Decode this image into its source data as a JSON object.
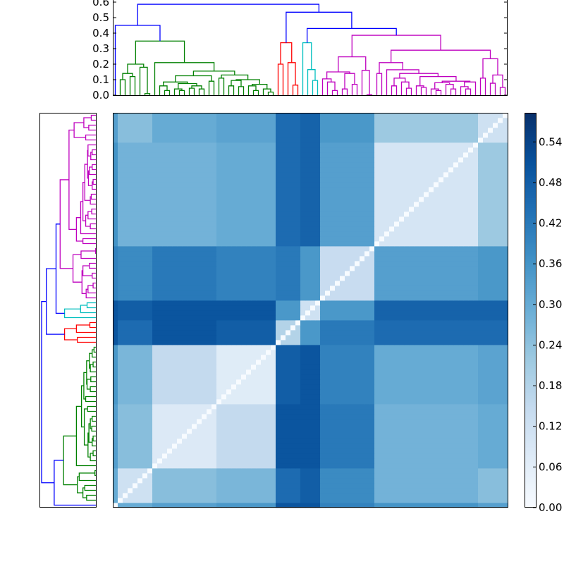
{
  "chart_data": {
    "type": "heatmap",
    "title": "",
    "colormap": "Blues",
    "colormap_stops": [
      "#f7fbff",
      "#deebf7",
      "#c6dbef",
      "#9ecae1",
      "#6baed6",
      "#4292c6",
      "#2171b5",
      "#08519c",
      "#08306b"
    ],
    "color_range": [
      0,
      0.583
    ],
    "colorbar_ticks": [
      "0.00",
      "0.06",
      "0.12",
      "0.18",
      "0.24",
      "0.30",
      "0.36",
      "0.42",
      "0.48",
      "0.54"
    ],
    "dendrogram_ylim": [
      0,
      0.6
    ],
    "dendrogram_ticks": [
      "0.0",
      "0.1",
      "0.2",
      "0.3",
      "0.4",
      "0.5",
      "0.6"
    ],
    "above_threshold_color": "#0000ff",
    "dendrogram": [
      0.586,
      [
        0.45,
        0,
        {
          "color": "#008000",
          "tree": [
            0.349,
            [
              0.2,
              [
                0.14,
                [
                  0.1,
                  0,
                  0
                ],
                [
                  0.12,
                  0,
                  0
                ]
              ],
              [
                0.18,
                0,
                [
                  0.01,
                  0,
                  0
                ]
              ]
            ],
            [
              0.21,
              0,
              [
                0.155,
                [
                  0.125,
                  [
                    0.085,
                    [
                      0.06,
                      0,
                      [
                        0.03,
                        0,
                        0
                      ]
                    ],
                    [
                      0.075,
                      [
                        0.04,
                        0,
                        [
                          0.03,
                          0,
                          0
                        ]
                      ],
                      [
                        0.06,
                        [
                          0.045,
                          0,
                          0
                        ],
                        [
                          0.04,
                          0,
                          0
                        ]
                      ]
                    ]
                  ],
                  [
                    0.09,
                    0,
                    0
                  ]
                ],
                [
                  0.13,
                  [
                    0.11,
                    0,
                    0
                  ],
                  [
                    0.1,
                    [
                      0.095,
                      [
                        0.06,
                        0,
                        0
                      ],
                      [
                        0.055,
                        0,
                        0
                      ]
                    ],
                    [
                      0.07,
                      [
                        0.06,
                        0,
                        [
                          0.03,
                          0,
                          0
                        ]
                      ],
                      [
                        0.04,
                        0,
                        [
                          0.02,
                          0,
                          0
                        ]
                      ]
                    ]
                  ]
                ]
              ]
            ]
          ]
        }
      ],
      [
        0.535,
        {
          "color": "#ff0000",
          "tree": [
            0.338,
            [
              0.2,
              0,
              0
            ],
            [
              0.21,
              0,
              [
                0.065,
                0,
                0
              ]
            ]
          ]
        },
        [
          0.43,
          {
            "color": "#00bfbf",
            "tree": [
              0.338,
              0,
              [
                0.165,
                0,
                [
                  0.095,
                  0,
                  0
                ]
              ]
            ]
          },
          {
            "color": "#bf00bf",
            "tree": [
              0.386,
              [
                0.247,
                [
                  0.15,
                  [
                    0.105,
                    0,
                    [
                      0.085,
                      0,
                      [
                        0.03,
                        0,
                        0
                      ]
                    ]
                  ],
                  [
                    0.14,
                    [
                      0.04,
                      0,
                      0
                    ],
                    [
                      0.07,
                      0,
                      0
                    ]
                  ]
                ],
                [
                  0.16,
                  0,
                  [
                    0.003,
                    0,
                    0
                  ]
                ]
              ],
              [
                0.29,
                [
                  0.21,
                  [
                    0.14,
                    0,
                    0
                  ],
                  [
                    0.164,
                    0,
                    [
                      0.14,
                      [
                        0.11,
                        [
                          0.06,
                          0,
                          0
                        ],
                        [
                          0.085,
                          0,
                          [
                            0.045,
                            0,
                            0
                          ]
                        ]
                      ],
                      [
                        0.12,
                        [
                          0.06,
                          0,
                          [
                            0.05,
                            0,
                            0
                          ]
                        ],
                        [
                          0.09,
                          [
                            0.08,
                            [
                              0.04,
                              0,
                              [
                                0.03,
                                0,
                                0
                              ]
                            ],
                            [
                              0.07,
                              0,
                              [
                                0.04,
                                0,
                                0
                              ]
                            ]
                          ],
                          [
                            0.085,
                            [
                              0.055,
                              0,
                              [
                                0.04,
                                0,
                                0
                              ]
                            ],
                            0
                          ]
                        ]
                      ]
                    ]
                  ]
                ],
                [
                  0.235,
                  [
                    0.11,
                    0,
                    0
                  ],
                  [
                    0.13,
                    [
                      0.077,
                      0,
                      0
                    ],
                    [
                      0.05,
                      0,
                      0
                    ]
                  ]
                ]
              ]
            ]
          }
        ]
      ]
    ],
    "leaf_groups": [
      1,
      7,
      13,
      12,
      5,
      4,
      11,
      21,
      6
    ],
    "group_values": [
      [
        0.0,
        0.3,
        0.33,
        0.35,
        0.5,
        0.5,
        0.4,
        0.36,
        0.33
      ],
      [
        0.3,
        0.12,
        0.25,
        0.27,
        0.45,
        0.48,
        0.38,
        0.28,
        0.25
      ],
      [
        0.33,
        0.25,
        0.08,
        0.15,
        0.5,
        0.5,
        0.42,
        0.28,
        0.3
      ],
      [
        0.35,
        0.27,
        0.15,
        0.07,
        0.48,
        0.5,
        0.4,
        0.3,
        0.32
      ],
      [
        0.5,
        0.45,
        0.5,
        0.48,
        0.18,
        0.35,
        0.42,
        0.45,
        0.45
      ],
      [
        0.5,
        0.48,
        0.5,
        0.5,
        0.35,
        0.12,
        0.35,
        0.47,
        0.47
      ],
      [
        0.4,
        0.38,
        0.42,
        0.4,
        0.42,
        0.35,
        0.14,
        0.33,
        0.35
      ],
      [
        0.36,
        0.28,
        0.28,
        0.3,
        0.45,
        0.47,
        0.33,
        0.1,
        0.22
      ],
      [
        0.33,
        0.25,
        0.3,
        0.32,
        0.45,
        0.47,
        0.35,
        0.22,
        0.12
      ]
    ],
    "diagonal_value": 0
  }
}
